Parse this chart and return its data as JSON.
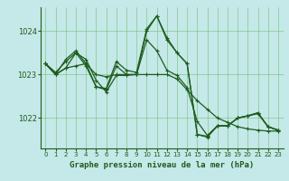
{
  "title": "Graphe pression niveau de la mer (hPa)",
  "bg_color": "#c5e8e8",
  "grid_color": "#5cb85c",
  "line_color": "#1e5c1e",
  "markersize": 2.5,
  "linewidth": 0.9,
  "xlim": [
    -0.5,
    23.5
  ],
  "ylim": [
    1021.3,
    1024.55
  ],
  "yticks": [
    1022,
    1023,
    1024
  ],
  "xticks": [
    0,
    1,
    2,
    3,
    4,
    5,
    6,
    7,
    8,
    9,
    10,
    11,
    12,
    13,
    14,
    15,
    16,
    17,
    18,
    19,
    20,
    21,
    22,
    23
  ],
  "series": [
    [
      1023.25,
      1023.0,
      1023.35,
      1023.55,
      1023.25,
      1022.72,
      1022.68,
      1023.3,
      1023.1,
      1023.05,
      1024.05,
      1024.35,
      1023.85,
      1023.5,
      1023.25,
      1021.62,
      1021.56,
      1021.82,
      1021.82,
      1022.0,
      1022.05,
      1022.12,
      1021.8,
      1021.72
    ],
    [
      1023.25,
      1023.0,
      1023.15,
      1023.2,
      1023.25,
      1023.0,
      1022.95,
      1023.0,
      1023.0,
      1023.0,
      1023.0,
      1023.0,
      1023.0,
      1022.9,
      1022.65,
      1022.4,
      1022.2,
      1022.0,
      1021.9,
      1021.8,
      1021.75,
      1021.72,
      1021.7,
      1021.7
    ],
    [
      1023.25,
      1023.05,
      1023.3,
      1023.5,
      1023.35,
      1022.87,
      1022.6,
      1022.98,
      1022.98,
      1023.0,
      1023.8,
      1023.55,
      1023.1,
      1022.98,
      1022.7,
      1021.92,
      1021.6,
      1021.82,
      1021.82,
      1022.0,
      1022.05,
      1022.1,
      1021.8,
      1021.72
    ],
    [
      1023.25,
      1023.0,
      1023.15,
      1023.5,
      1023.2,
      1022.72,
      1022.65,
      1023.2,
      1023.0,
      1023.0,
      1024.0,
      1024.35,
      1023.8,
      1023.5,
      1023.25,
      1021.62,
      1021.58,
      1021.82,
      1021.82,
      1022.0,
      1022.05,
      1022.12,
      1021.8,
      1021.72
    ]
  ]
}
